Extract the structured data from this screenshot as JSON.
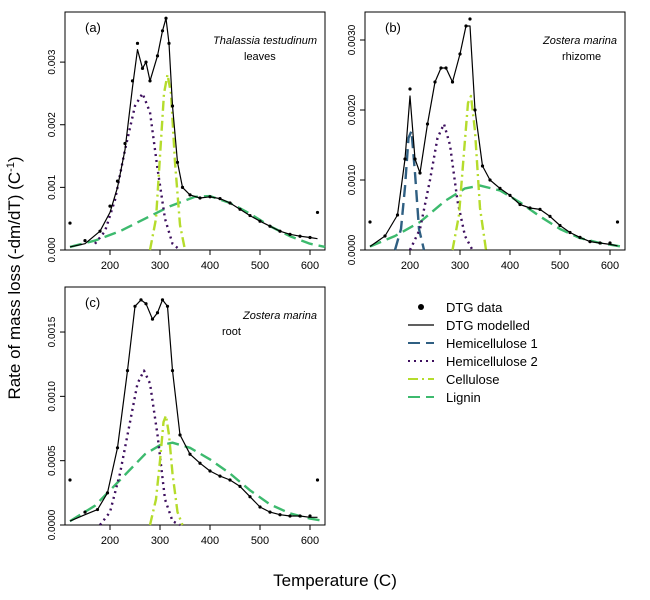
{
  "figure": {
    "ylabel": "Rate of mass loss (-dm/dT) (C",
    "ylabel_sup": "-1",
    "ylabel_close": ")",
    "xlabel": "Temperature (C)"
  },
  "legend": [
    {
      "label": "DTG data",
      "style": "points",
      "color": "#000000"
    },
    {
      "label": "DTG modelled",
      "style": "solid",
      "color": "#000000"
    },
    {
      "label": "Hemicellulose 1",
      "style": "dash-long",
      "color": "#2f5f82"
    },
    {
      "label": "Hemicellulose 2",
      "style": "dotted",
      "color": "#3d0f5e"
    },
    {
      "label": "Cellulose",
      "style": "dashdot",
      "color": "#b5dc2c"
    },
    {
      "label": "Lignin",
      "style": "dash-long",
      "color": "#3dba6e"
    }
  ],
  "chart_data": [
    {
      "type": "line",
      "panel": "(a)",
      "species": "Thalassia testudinum",
      "tissue": "leaves",
      "xlim": [
        110,
        630
      ],
      "ylim": [
        0,
        0.0038
      ],
      "xticks": [
        200,
        300,
        400,
        500,
        600
      ],
      "xtick_labels": [
        "200",
        "300",
        "400",
        "500",
        "600"
      ],
      "yticks": [
        0,
        0.001,
        0.002,
        0.003
      ],
      "ytick_labels": [
        "0.000",
        "0.001",
        "0.002",
        "0.003"
      ],
      "series": [
        {
          "name": "DTG data",
          "style": "points",
          "color": "#000000",
          "x": [
            120,
            150,
            180,
            200,
            215,
            230,
            245,
            255,
            265,
            272,
            280,
            295,
            305,
            312,
            318,
            325,
            335,
            345,
            360,
            380,
            400,
            420,
            440,
            460,
            480,
            500,
            520,
            540,
            560,
            580,
            600,
            615
          ],
          "y": [
            0.00043,
            0.00015,
            0.0003,
            0.0007,
            0.0011,
            0.0017,
            0.0027,
            0.0033,
            0.0029,
            0.003,
            0.0027,
            0.0031,
            0.0035,
            0.0037,
            0.0033,
            0.0023,
            0.0014,
            0.001,
            0.00088,
            0.00083,
            0.00085,
            0.00082,
            0.00075,
            0.00065,
            0.00055,
            0.00046,
            0.00038,
            0.0003,
            0.00025,
            0.00022,
            0.0002,
            0.0006
          ]
        },
        {
          "name": "DTG modelled",
          "style": "solid",
          "color": "#000000",
          "x": [
            120,
            150,
            180,
            200,
            215,
            230,
            245,
            255,
            265,
            272,
            280,
            295,
            305,
            312,
            318,
            325,
            335,
            345,
            360,
            380,
            400,
            420,
            440,
            460,
            480,
            500,
            520,
            540,
            560,
            580,
            600,
            615
          ],
          "y": [
            5e-05,
            0.0001,
            0.0003,
            0.0006,
            0.001,
            0.0016,
            0.0026,
            0.0032,
            0.0029,
            0.003,
            0.0027,
            0.0031,
            0.0035,
            0.0037,
            0.0033,
            0.0023,
            0.0014,
            0.001,
            0.00088,
            0.00083,
            0.00085,
            0.00082,
            0.00075,
            0.00065,
            0.00055,
            0.00046,
            0.00038,
            0.0003,
            0.00025,
            0.00022,
            0.0002,
            0.00018
          ]
        },
        {
          "name": "Hemicellulose 2",
          "style": "dotted",
          "color": "#3d0f5e",
          "x": [
            170,
            190,
            210,
            230,
            250,
            265,
            280,
            295,
            310,
            325,
            340
          ],
          "y": [
            0.0001,
            0.0003,
            0.0008,
            0.0016,
            0.0023,
            0.0025,
            0.0022,
            0.0013,
            0.0005,
            0.0001,
            0.0
          ]
        },
        {
          "name": "Cellulose",
          "style": "dashdot",
          "color": "#b5dc2c",
          "x": [
            280,
            292,
            300,
            308,
            315,
            322,
            330,
            340,
            350
          ],
          "y": [
            0.0,
            0.0005,
            0.0015,
            0.0025,
            0.0028,
            0.0025,
            0.0014,
            0.0004,
            0.0
          ]
        },
        {
          "name": "Lignin",
          "style": "dash-long",
          "color": "#3dba6e",
          "x": [
            120,
            170,
            220,
            270,
            320,
            370,
            400,
            440,
            480,
            520,
            560,
            600,
            630
          ],
          "y": [
            5e-05,
            0.00015,
            0.0003,
            0.0005,
            0.0007,
            0.00085,
            0.00086,
            0.00075,
            0.00058,
            0.00038,
            0.00022,
            0.0001,
            5e-05
          ]
        }
      ]
    },
    {
      "type": "line",
      "panel": "(b)",
      "species": "Zostera marina",
      "tissue": "rhizome",
      "xlim": [
        110,
        630
      ],
      "ylim": [
        0,
        0.0034
      ],
      "xticks": [
        200,
        300,
        400,
        500,
        600
      ],
      "xtick_labels": [
        "200",
        "300",
        "400",
        "500",
        "600"
      ],
      "yticks": [
        0,
        0.001,
        0.002,
        0.003
      ],
      "ytick_labels": [
        "0.0000",
        "0.0010",
        "0.0020",
        "0.0030"
      ],
      "series": [
        {
          "name": "DTG data",
          "style": "points",
          "color": "#000000",
          "x": [
            120,
            150,
            175,
            190,
            200,
            210,
            220,
            235,
            250,
            262,
            272,
            285,
            300,
            312,
            320,
            330,
            345,
            360,
            380,
            400,
            420,
            440,
            460,
            480,
            500,
            520,
            540,
            560,
            580,
            600,
            615
          ],
          "y": [
            0.0004,
            0.0002,
            0.0005,
            0.0013,
            0.0023,
            0.0013,
            0.0011,
            0.0018,
            0.0024,
            0.0026,
            0.0026,
            0.0024,
            0.0028,
            0.0032,
            0.0033,
            0.002,
            0.0012,
            0.001,
            0.00088,
            0.00078,
            0.00065,
            0.0006,
            0.00058,
            0.00048,
            0.00035,
            0.00025,
            0.00018,
            0.00012,
            0.0001,
            0.0001,
            0.0004
          ]
        },
        {
          "name": "DTG modelled",
          "style": "solid",
          "color": "#000000",
          "x": [
            120,
            150,
            175,
            190,
            200,
            210,
            220,
            235,
            250,
            262,
            272,
            285,
            300,
            312,
            320,
            330,
            345,
            360,
            380,
            400,
            420,
            440,
            460,
            480,
            500,
            520,
            540,
            560,
            580,
            600,
            615
          ],
          "y": [
            5e-05,
            0.0002,
            0.0005,
            0.0013,
            0.0022,
            0.0013,
            0.0011,
            0.0018,
            0.0024,
            0.0026,
            0.0026,
            0.0024,
            0.0028,
            0.0032,
            0.0032,
            0.002,
            0.0012,
            0.001,
            0.00088,
            0.00078,
            0.00065,
            0.0006,
            0.00058,
            0.00048,
            0.00035,
            0.00025,
            0.00018,
            0.00012,
            0.0001,
            8e-05,
            6e-05
          ]
        },
        {
          "name": "Hemicellulose 1",
          "style": "dash-long",
          "color": "#2f5f82",
          "x": [
            170,
            182,
            190,
            197,
            203,
            210,
            218,
            228
          ],
          "y": [
            0.0,
            0.0003,
            0.0009,
            0.0016,
            0.0017,
            0.0011,
            0.0003,
            0.0
          ]
        },
        {
          "name": "Hemicellulose 2",
          "style": "dotted",
          "color": "#3d0f5e",
          "x": [
            200,
            220,
            240,
            255,
            268,
            280,
            295,
            310,
            325
          ],
          "y": [
            0.0,
            0.0003,
            0.001,
            0.0016,
            0.0018,
            0.0015,
            0.0007,
            0.0002,
            0.0
          ]
        },
        {
          "name": "Cellulose",
          "style": "dashdot",
          "color": "#b5dc2c",
          "x": [
            285,
            298,
            308,
            316,
            322,
            330,
            340,
            352
          ],
          "y": [
            0.0,
            0.0005,
            0.0014,
            0.0021,
            0.0022,
            0.0017,
            0.0006,
            0.0
          ]
        },
        {
          "name": "Lignin",
          "style": "dash-long",
          "color": "#3dba6e",
          "x": [
            120,
            170,
            220,
            270,
            310,
            340,
            380,
            420,
            460,
            500,
            540,
            580,
            630
          ],
          "y": [
            5e-05,
            0.0002,
            0.0004,
            0.0007,
            0.00088,
            0.00092,
            0.00085,
            0.00068,
            0.00048,
            0.0003,
            0.00017,
            0.0001,
            4e-05
          ]
        }
      ]
    },
    {
      "type": "line",
      "panel": "(c)",
      "species": "Zostera marina",
      "tissue": "root",
      "xlim": [
        110,
        630
      ],
      "ylim": [
        0,
        0.00185
      ],
      "xticks": [
        200,
        300,
        400,
        500,
        600
      ],
      "xtick_labels": [
        "200",
        "300",
        "400",
        "500",
        "600"
      ],
      "yticks": [
        0,
        0.0005,
        0.001,
        0.0015
      ],
      "ytick_labels": [
        "0.0000",
        "0.0005",
        "0.0010",
        "0.0015"
      ],
      "series": [
        {
          "name": "DTG data",
          "style": "points",
          "color": "#000000",
          "x": [
            120,
            150,
            175,
            195,
            215,
            235,
            250,
            262,
            272,
            285,
            295,
            305,
            315,
            325,
            340,
            360,
            380,
            400,
            420,
            440,
            460,
            480,
            500,
            520,
            540,
            560,
            580,
            600,
            615
          ],
          "y": [
            0.00035,
            0.0001,
            0.00012,
            0.00025,
            0.0006,
            0.0012,
            0.0017,
            0.00175,
            0.00172,
            0.0016,
            0.00165,
            0.00175,
            0.0017,
            0.0012,
            0.0007,
            0.00055,
            0.00048,
            0.00042,
            0.00038,
            0.00035,
            0.0003,
            0.00022,
            0.00014,
            0.0001,
            8e-05,
            7e-05,
            7e-05,
            7e-05,
            0.00035
          ]
        },
        {
          "name": "DTG modelled",
          "style": "solid",
          "color": "#000000",
          "x": [
            120,
            150,
            175,
            195,
            215,
            235,
            250,
            262,
            272,
            285,
            295,
            305,
            315,
            325,
            340,
            360,
            380,
            400,
            420,
            440,
            460,
            480,
            500,
            520,
            540,
            560,
            580,
            600,
            615
          ],
          "y": [
            3e-05,
            8e-05,
            0.00012,
            0.00025,
            0.0006,
            0.0012,
            0.0017,
            0.00175,
            0.00172,
            0.0016,
            0.00165,
            0.00175,
            0.0017,
            0.0012,
            0.0007,
            0.00055,
            0.00048,
            0.00042,
            0.00038,
            0.00035,
            0.0003,
            0.00022,
            0.00014,
            0.0001,
            8e-05,
            7e-05,
            7e-05,
            6e-05,
            6e-05
          ]
        },
        {
          "name": "Hemicellulose 2",
          "style": "dotted",
          "color": "#3d0f5e",
          "x": [
            180,
            200,
            220,
            240,
            255,
            268,
            280,
            295,
            310,
            325,
            340
          ],
          "y": [
            0.0,
            0.0001,
            0.0004,
            0.0008,
            0.0011,
            0.0012,
            0.0011,
            0.0007,
            0.0002,
            3e-05,
            0.0
          ]
        },
        {
          "name": "Cellulose",
          "style": "dashdot",
          "color": "#b5dc2c",
          "x": [
            280,
            292,
            300,
            307,
            312,
            318,
            325,
            335,
            345
          ],
          "y": [
            0.0,
            0.0002,
            0.0005,
            0.0008,
            0.00085,
            0.0007,
            0.0004,
            0.0001,
            0.0
          ]
        },
        {
          "name": "Lignin",
          "style": "dash-long",
          "color": "#3dba6e",
          "x": [
            120,
            170,
            220,
            270,
            300,
            325,
            360,
            400,
            440,
            480,
            520,
            560,
            600,
            630
          ],
          "y": [
            3e-05,
            0.00015,
            0.00035,
            0.00055,
            0.00062,
            0.00064,
            0.0006,
            0.00051,
            0.0004,
            0.00027,
            0.00016,
            9e-05,
            5e-05,
            3e-05
          ]
        }
      ]
    }
  ]
}
